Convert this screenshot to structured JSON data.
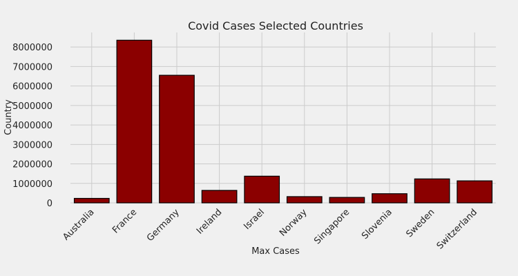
{
  "chart_data": {
    "type": "bar",
    "title": "Covid Cases Selected Countries",
    "xlabel": "Max Cases",
    "ylabel": "Country",
    "categories": [
      "Australia",
      "France",
      "Germany",
      "Ireland",
      "Israel",
      "Norway",
      "Singapore",
      "Slovenia",
      "Sweden",
      "Switzerland"
    ],
    "values": [
      230000,
      8350000,
      6550000,
      640000,
      1370000,
      320000,
      280000,
      470000,
      1230000,
      1130000
    ],
    "ylim": [
      0,
      8750000
    ],
    "yticks": [
      0,
      1000000,
      2000000,
      3000000,
      4000000,
      5000000,
      6000000,
      7000000,
      8000000
    ],
    "ytick_labels": [
      "0",
      "1000000",
      "2000000",
      "3000000",
      "4000000",
      "5000000",
      "6000000",
      "7000000",
      "8000000"
    ],
    "grid": true,
    "bar_color": "#8b0000",
    "background_color": "#f0f0f0"
  }
}
